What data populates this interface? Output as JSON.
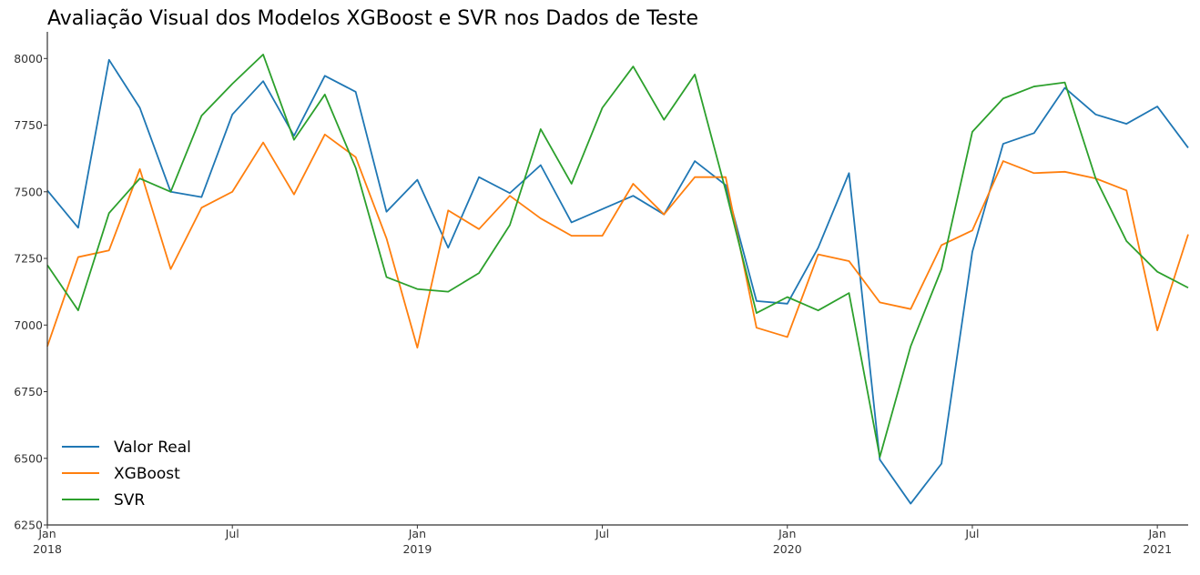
{
  "chart_data": {
    "type": "line",
    "title": "Avaliação Visual dos Modelos XGBoost e SVR nos Dados de Teste",
    "xlabel": "",
    "ylabel": "",
    "ylim": [
      6250,
      8100
    ],
    "yticks": [
      6250,
      6500,
      6750,
      7000,
      7250,
      7500,
      7750,
      8000
    ],
    "x": [
      "2018-01",
      "2018-02",
      "2018-03",
      "2018-04",
      "2018-05",
      "2018-06",
      "2018-07",
      "2018-08",
      "2018-09",
      "2018-10",
      "2018-11",
      "2018-12",
      "2019-01",
      "2019-02",
      "2019-03",
      "2019-04",
      "2019-05",
      "2019-06",
      "2019-07",
      "2019-08",
      "2019-09",
      "2019-10",
      "2019-11",
      "2019-12",
      "2020-01",
      "2020-02",
      "2020-03",
      "2020-04",
      "2020-05",
      "2020-06",
      "2020-07",
      "2020-08",
      "2020-09",
      "2020-10",
      "2020-11",
      "2020-12",
      "2021-01",
      "2021-02"
    ],
    "xticks": [
      {
        "x": "2018-01",
        "label": "Jan",
        "year": "2018"
      },
      {
        "x": "2018-07",
        "label": "Jul",
        "year": ""
      },
      {
        "x": "2019-01",
        "label": "Jan",
        "year": "2019"
      },
      {
        "x": "2019-07",
        "label": "Jul",
        "year": ""
      },
      {
        "x": "2020-01",
        "label": "Jan",
        "year": "2020"
      },
      {
        "x": "2020-07",
        "label": "Jul",
        "year": ""
      },
      {
        "x": "2021-01",
        "label": "Jan",
        "year": "2021"
      }
    ],
    "series": [
      {
        "name": "Valor Real",
        "color": "#1f77b4",
        "values": [
          7505,
          7365,
          7995,
          7815,
          7500,
          7480,
          7790,
          7915,
          7710,
          7935,
          7875,
          7425,
          7545,
          7290,
          7555,
          7495,
          7600,
          7385,
          7435,
          7485,
          7415,
          7615,
          7525,
          7090,
          7080,
          7290,
          7570,
          6495,
          6330,
          6480,
          7275,
          7680,
          7720,
          7890,
          7790,
          7755,
          7820,
          7665
        ]
      },
      {
        "name": "XGBoost",
        "color": "#ff7f0e",
        "values": [
          6920,
          7255,
          7280,
          7585,
          7210,
          7440,
          7500,
          7685,
          7490,
          7715,
          7630,
          7325,
          6915,
          7430,
          7360,
          7485,
          7400,
          7335,
          7335,
          7530,
          7415,
          7555,
          7555,
          6990,
          6955,
          7265,
          7240,
          7085,
          7060,
          7300,
          7355,
          7615,
          7570,
          7575,
          7550,
          7505,
          6980,
          7340
        ]
      },
      {
        "name": "SVR",
        "color": "#2ca02c",
        "values": [
          7225,
          7055,
          7420,
          7550,
          7500,
          7785,
          7905,
          8015,
          7695,
          7865,
          7590,
          7180,
          7135,
          7125,
          7195,
          7375,
          7735,
          7530,
          7815,
          7970,
          7770,
          7940,
          7505,
          7045,
          7105,
          7055,
          7120,
          6505,
          6920,
          7210,
          7725,
          7850,
          7895,
          7910,
          7550,
          7315,
          7200,
          7140
        ]
      }
    ],
    "legend": {
      "position": "lower-left"
    },
    "grid": false
  }
}
